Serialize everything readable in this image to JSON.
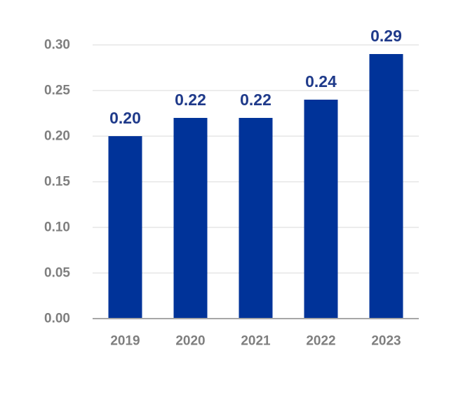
{
  "chart_data": {
    "type": "bar",
    "title": "",
    "xlabel": "",
    "ylabel": "",
    "categories": [
      "2019",
      "2020",
      "2021",
      "2022",
      "2023"
    ],
    "values": [
      0.2,
      0.22,
      0.22,
      0.24,
      0.29
    ],
    "data_labels": [
      "0.20",
      "0.22",
      "0.22",
      "0.24",
      "0.29"
    ],
    "ylim": [
      0,
      0.3
    ],
    "yticks": [
      0.0,
      0.05,
      0.1,
      0.15,
      0.2,
      0.25,
      0.3
    ],
    "ytick_labels": [
      "0.00",
      "0.05",
      "0.10",
      "0.15",
      "0.20",
      "0.25",
      "0.30"
    ],
    "grid": true,
    "legend": "none",
    "colors": {
      "bar": "#003399",
      "data_label": "#1f3a8a",
      "tick_label": "#7f7f7f",
      "gridline": "#e6e6e6",
      "baseline": "#a6a6a6"
    }
  }
}
